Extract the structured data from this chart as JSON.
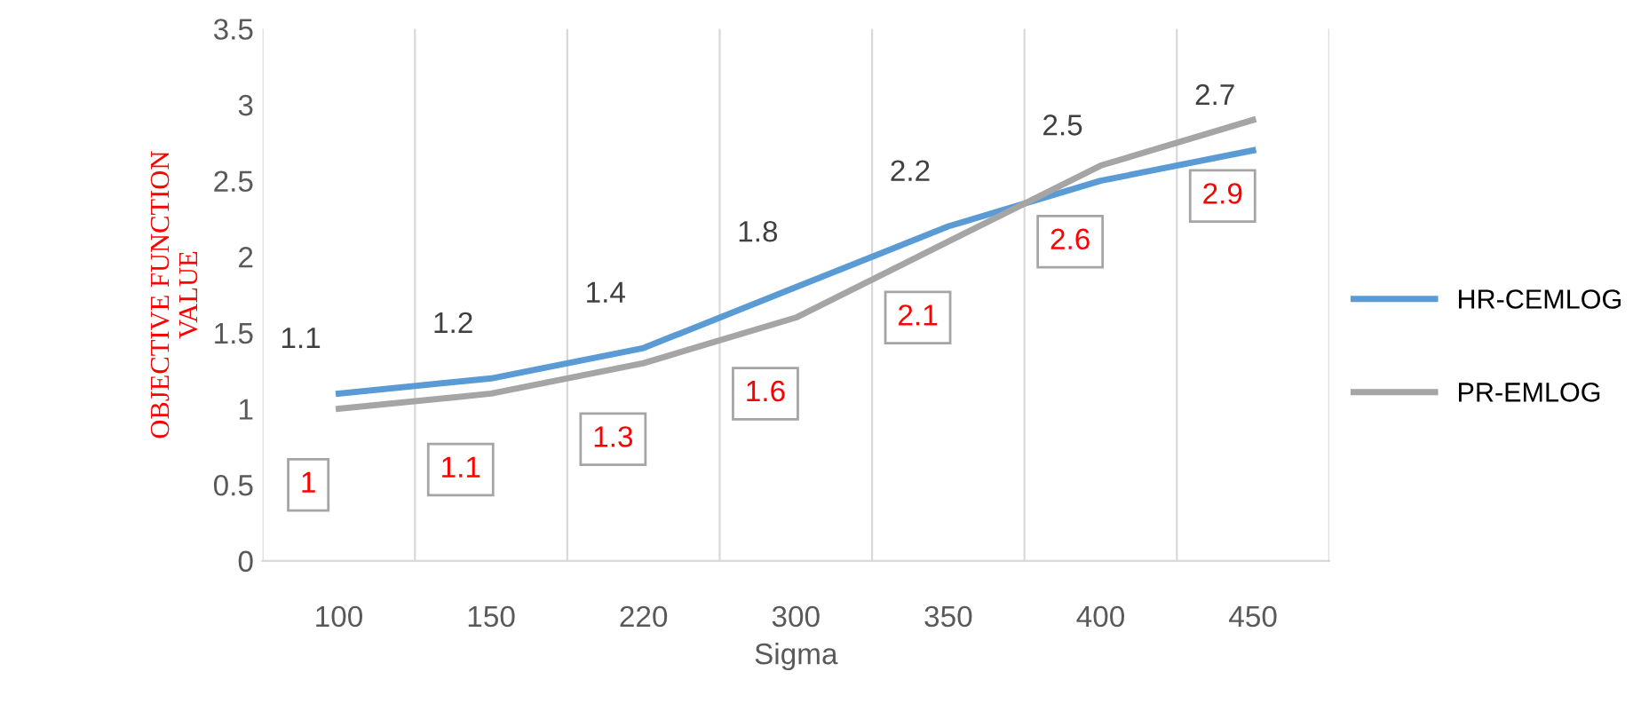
{
  "chart_data": {
    "type": "line",
    "xlabel": "Sigma",
    "ylabel": "OBJECTIVE FUNCTION\nVALUE",
    "categories": [
      "100",
      "150",
      "220",
      "300",
      "350",
      "400",
      "450"
    ],
    "series": [
      {
        "name": "HR-CEMLOG",
        "color": "#5b9bd5",
        "values": [
          1.1,
          1.2,
          1.4,
          1.8,
          2.2,
          2.5,
          2.7
        ]
      },
      {
        "name": "PR-EMLOG",
        "color": "#a5a5a5",
        "values": [
          1,
          1.1,
          1.3,
          1.6,
          2.1,
          2.6,
          2.9
        ]
      }
    ],
    "ylim": [
      0,
      3.5
    ],
    "yticks": [
      0,
      0.5,
      1,
      1.5,
      2,
      2.5,
      3,
      3.5
    ],
    "data_labels": true,
    "grid": "x",
    "legend": "right",
    "marker": "none",
    "line_style": "solid"
  }
}
